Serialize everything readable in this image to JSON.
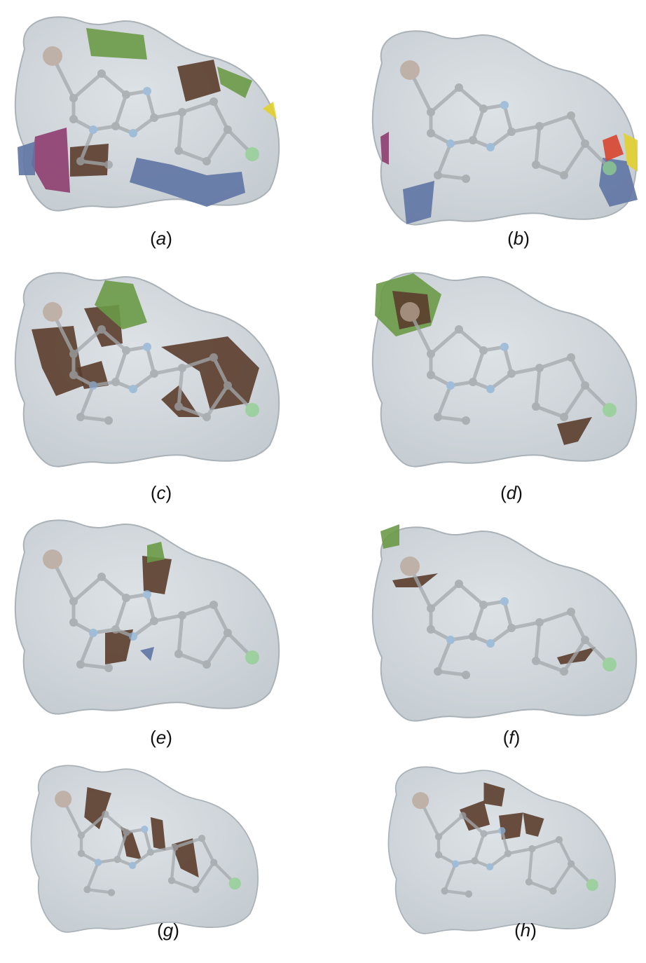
{
  "figure": {
    "panels": [
      {
        "id": "a",
        "label": "a",
        "patches": [
          {
            "type": "brown",
            "pts": [
              [
                95,
                200
              ],
              [
                150,
                195
              ],
              [
                148,
                240
              ],
              [
                95,
                242
              ]
            ]
          },
          {
            "type": "brown",
            "pts": [
              [
                248,
                85
              ],
              [
                300,
                75
              ],
              [
                310,
                120
              ],
              [
                260,
                135
              ]
            ]
          },
          {
            "type": "green",
            "pts": [
              [
                118,
                30
              ],
              [
                200,
                40
              ],
              [
                205,
                75
              ],
              [
                125,
                70
              ]
            ]
          },
          {
            "type": "green",
            "pts": [
              [
                305,
                85
              ],
              [
                355,
                105
              ],
              [
                345,
                130
              ],
              [
                310,
                110
              ]
            ]
          },
          {
            "type": "blue",
            "pts": [
              [
                190,
                215
              ],
              [
                240,
                225
              ],
              [
                290,
                240
              ],
              [
                340,
                235
              ],
              [
                345,
                265
              ],
              [
                290,
                285
              ],
              [
                230,
                265
              ],
              [
                180,
                250
              ]
            ]
          },
          {
            "type": "magenta",
            "pts": [
              [
                45,
                185
              ],
              [
                90,
                172
              ],
              [
                95,
                265
              ],
              [
                60,
                260
              ],
              [
                40,
                225
              ]
            ]
          },
          {
            "type": "blue",
            "pts": [
              [
                20,
                200
              ],
              [
                45,
                192
              ],
              [
                45,
                240
              ],
              [
                22,
                240
              ]
            ]
          },
          {
            "type": "yellow",
            "pts": [
              [
                370,
                145
              ],
              [
                385,
                135
              ],
              [
                390,
                160
              ]
            ]
          }
        ]
      },
      {
        "id": "b",
        "label": "b",
        "patches": [
          {
            "type": "blue",
            "pts": [
              [
                345,
                195
              ],
              [
                380,
                200
              ],
              [
                395,
                255
              ],
              [
                355,
                265
              ],
              [
                340,
                235
              ]
            ]
          },
          {
            "type": "yellow",
            "pts": [
              [
                375,
                160
              ],
              [
                395,
                170
              ],
              [
                395,
                215
              ],
              [
                380,
                205
              ]
            ]
          },
          {
            "type": "red",
            "pts": [
              [
                345,
                170
              ],
              [
                365,
                162
              ],
              [
                375,
                190
              ],
              [
                350,
                200
              ]
            ]
          },
          {
            "type": "blue",
            "pts": [
              [
                60,
                240
              ],
              [
                105,
                228
              ],
              [
                100,
                280
              ],
              [
                65,
                290
              ]
            ]
          },
          {
            "type": "magenta",
            "pts": [
              [
                28,
                165
              ],
              [
                40,
                158
              ],
              [
                40,
                205
              ],
              [
                30,
                200
              ]
            ]
          }
        ]
      },
      {
        "id": "c",
        "label": "c",
        "patches": [
          {
            "type": "brown",
            "pts": [
              [
                40,
                95
              ],
              [
                100,
                90
              ],
              [
                115,
                175
              ],
              [
                75,
                190
              ],
              [
                55,
                150
              ]
            ]
          },
          {
            "type": "brown",
            "pts": [
              [
                115,
                65
              ],
              [
                165,
                60
              ],
              [
                170,
                115
              ],
              [
                140,
                120
              ]
            ]
          },
          {
            "type": "brown",
            "pts": [
              [
                225,
                120
              ],
              [
                320,
                105
              ],
              [
                365,
                150
              ],
              [
                350,
                200
              ],
              [
                295,
                210
              ],
              [
                280,
                155
              ]
            ]
          },
          {
            "type": "brown",
            "pts": [
              [
                225,
                195
              ],
              [
                250,
                175
              ],
              [
                280,
                220
              ],
              [
                250,
                220
              ]
            ]
          },
          {
            "type": "brown",
            "pts": [
              [
                105,
                150
              ],
              [
                140,
                140
              ],
              [
                150,
                175
              ],
              [
                115,
                180
              ]
            ]
          },
          {
            "type": "green",
            "pts": [
              [
                145,
                25
              ],
              [
                185,
                30
              ],
              [
                205,
                85
              ],
              [
                170,
                95
              ],
              [
                130,
                60
              ]
            ]
          }
        ]
      },
      {
        "id": "d",
        "label": "d",
        "patches": [
          {
            "type": "green",
            "pts": [
              [
                22,
                30
              ],
              [
                75,
                15
              ],
              [
                115,
                45
              ],
              [
                100,
                90
              ],
              [
                50,
                105
              ],
              [
                20,
                75
              ]
            ]
          },
          {
            "type": "brown",
            "pts": [
              [
                45,
                40
              ],
              [
                95,
                45
              ],
              [
                100,
                85
              ],
              [
                55,
                95
              ]
            ]
          },
          {
            "type": "brown",
            "pts": [
              [
                280,
                230
              ],
              [
                330,
                220
              ],
              [
                310,
                255
              ],
              [
                290,
                260
              ]
            ]
          }
        ]
      },
      {
        "id": "e",
        "label": "e",
        "patches": [
          {
            "type": "brown",
            "pts": [
              [
                198,
                65
              ],
              [
                240,
                70
              ],
              [
                230,
                120
              ],
              [
                200,
                115
              ]
            ]
          },
          {
            "type": "green",
            "pts": [
              [
                205,
                50
              ],
              [
                225,
                45
              ],
              [
                230,
                70
              ],
              [
                205,
                75
              ]
            ]
          },
          {
            "type": "brown",
            "pts": [
              [
                145,
                175
              ],
              [
                185,
                170
              ],
              [
                175,
                215
              ],
              [
                145,
                220
              ]
            ]
          },
          {
            "type": "blue",
            "pts": [
              [
                195,
                200
              ],
              [
                215,
                195
              ],
              [
                210,
                215
              ]
            ]
          }
        ]
      },
      {
        "id": "f",
        "label": "f",
        "patches": [
          {
            "type": "green",
            "pts": [
              [
                28,
                20
              ],
              [
                55,
                10
              ],
              [
                55,
                40
              ],
              [
                32,
                45
              ]
            ]
          },
          {
            "type": "brown",
            "pts": [
              [
                45,
                90
              ],
              [
                110,
                80
              ],
              [
                85,
                100
              ],
              [
                50,
                100
              ]
            ]
          },
          {
            "type": "brown",
            "pts": [
              [
                280,
                200
              ],
              [
                335,
                185
              ],
              [
                320,
                205
              ],
              [
                285,
                210
              ]
            ]
          }
        ]
      },
      {
        "id": "g",
        "label": "g",
        "patches": [
          {
            "type": "brown",
            "pts": [
              [
                110,
                50
              ],
              [
                150,
                60
              ],
              [
                130,
                120
              ],
              [
                105,
                100
              ]
            ]
          },
          {
            "type": "brown",
            "pts": [
              [
                165,
                115
              ],
              [
                185,
                125
              ],
              [
                200,
                170
              ],
              [
                175,
                165
              ]
            ]
          },
          {
            "type": "brown",
            "pts": [
              [
                215,
                100
              ],
              [
                235,
                105
              ],
              [
                240,
                155
              ],
              [
                220,
                150
              ]
            ]
          },
          {
            "type": "brown",
            "pts": [
              [
                250,
                145
              ],
              [
                285,
                135
              ],
              [
                295,
                200
              ],
              [
                265,
                185
              ]
            ]
          }
        ]
      },
      {
        "id": "h",
        "label": "h",
        "patches": [
          {
            "type": "brown",
            "pts": [
              [
                135,
                85
              ],
              [
                175,
                70
              ],
              [
                185,
                110
              ],
              [
                150,
                120
              ]
            ]
          },
          {
            "type": "brown",
            "pts": [
              [
                175,
                40
              ],
              [
                210,
                50
              ],
              [
                205,
                80
              ],
              [
                175,
                75
              ]
            ]
          },
          {
            "type": "brown",
            "pts": [
              [
                200,
                95
              ],
              [
                240,
                90
              ],
              [
                235,
                130
              ],
              [
                205,
                135
              ]
            ]
          },
          {
            "type": "brown",
            "pts": [
              [
                240,
                90
              ],
              [
                275,
                100
              ],
              [
                265,
                130
              ],
              [
                245,
                125
              ]
            ]
          }
        ]
      }
    ]
  },
  "colors": {
    "surface": "#c5ccd1",
    "surface_edge": "#aab2b8",
    "brown": "#5b3d2c",
    "green": "#6a9a47",
    "blue": "#5e74a3",
    "magenta": "#8e3d6f",
    "yellow": "#e2cf2e",
    "red": "#d9452f",
    "atom_c": "#9ea3a6",
    "atom_n": "#8fb3d6",
    "atom_br": "#b9a596",
    "atom_cl": "#8fd08f"
  }
}
